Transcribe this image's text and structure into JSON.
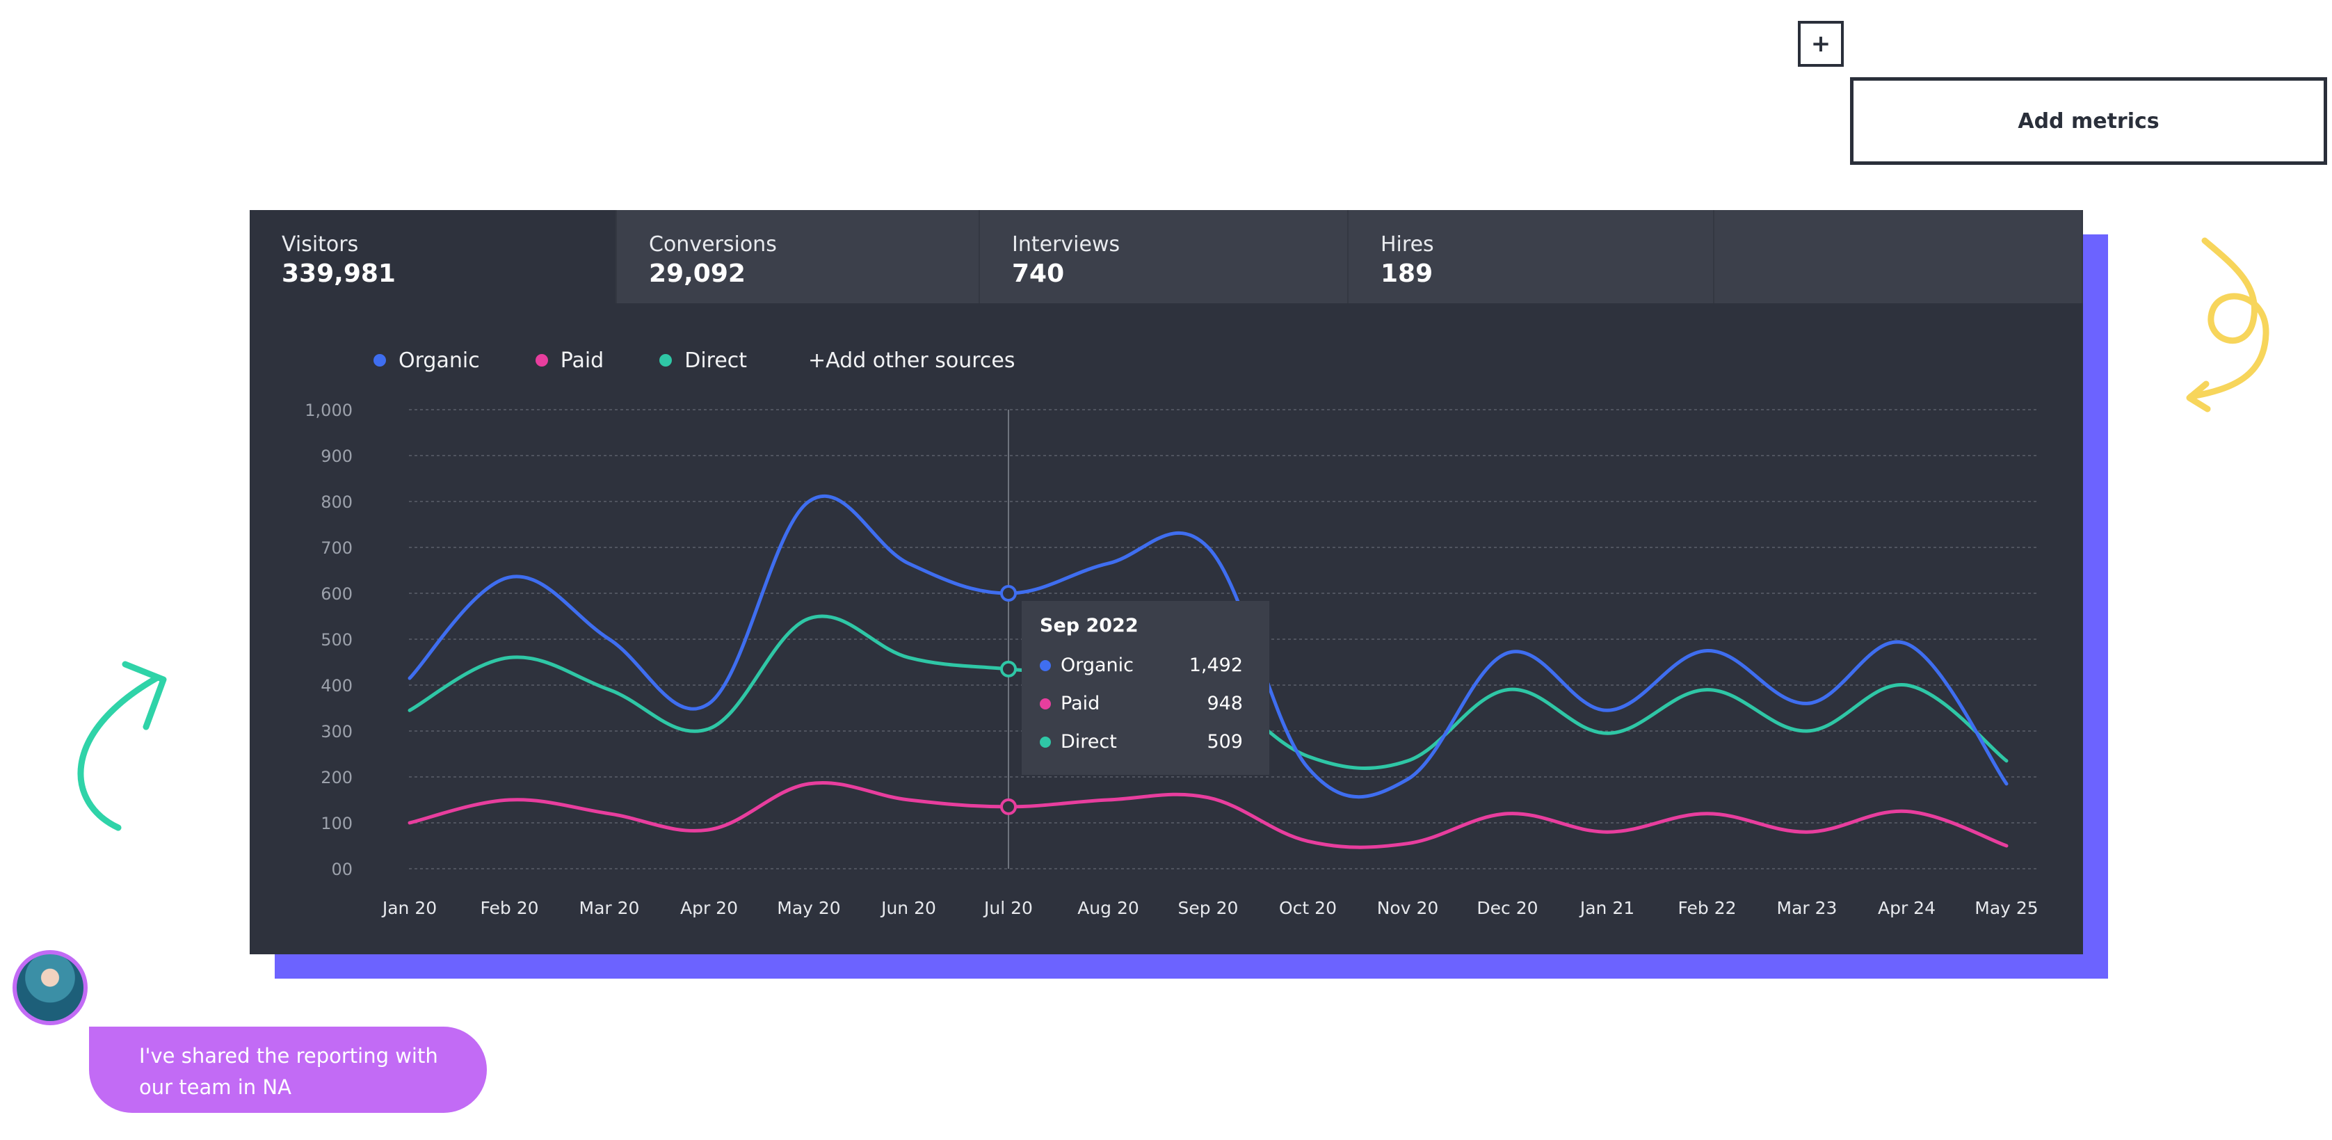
{
  "toolbar": {
    "plus_label": "+",
    "add_metrics_label": "Add metrics"
  },
  "tabs": [
    {
      "label": "Visitors",
      "value": "339,981"
    },
    {
      "label": "Conversions",
      "value": "29,092"
    },
    {
      "label": "Interviews",
      "value": "740"
    },
    {
      "label": "Hires",
      "value": "189"
    }
  ],
  "legend": {
    "items": [
      "Organic",
      "Paid",
      "Direct"
    ],
    "add_sources": "+Add other sources"
  },
  "tooltip": {
    "title": "Sep 2022",
    "rows": [
      {
        "name": "Organic",
        "value": "1,492"
      },
      {
        "name": "Paid",
        "value": "948"
      },
      {
        "name": "Direct",
        "value": "509"
      }
    ]
  },
  "chat": {
    "message": "I've shared the reporting with our team in NA"
  },
  "colors": {
    "organic": "#3f6ef0",
    "paid": "#e83e9e",
    "direct": "#2fc7a6",
    "panel": "#2e323d",
    "accent_shadow": "#6c63ff",
    "bubble": "#c26bf5"
  },
  "icons": [
    "plus-icon",
    "green-arrow-doodle",
    "yellow-swirl-doodle",
    "avatar-photo"
  ],
  "chart_data": {
    "type": "line",
    "title": "",
    "xlabel": "",
    "ylabel": "",
    "ylim": [
      0,
      1000
    ],
    "yticks": [
      "1,000",
      "900",
      "800",
      "700",
      "600",
      "500",
      "400",
      "300",
      "200",
      "100",
      "00"
    ],
    "grid": true,
    "legend_position": "top-left",
    "categories": [
      "Jan 20",
      "Feb 20",
      "Mar 20",
      "Apr 20",
      "May 20",
      "Jun 20",
      "Jul 20",
      "Aug 20",
      "Sep 20",
      "Oct 20",
      "Nov 20",
      "Dec 20",
      "Jan 21",
      "Feb 22",
      "Mar 23",
      "Apr 24",
      "May 25"
    ],
    "highlight_index": 6,
    "series": [
      {
        "name": "Organic",
        "values": [
          415,
          635,
          500,
          360,
          800,
          665,
          600,
          665,
          700,
          220,
          195,
          470,
          345,
          475,
          360,
          490,
          185
        ]
      },
      {
        "name": "Paid",
        "values": [
          100,
          150,
          120,
          85,
          185,
          150,
          135,
          150,
          155,
          60,
          55,
          120,
          80,
          120,
          80,
          125,
          50
        ]
      },
      {
        "name": "Direct",
        "values": [
          345,
          460,
          390,
          305,
          545,
          460,
          435,
          420,
          395,
          245,
          235,
          390,
          295,
          390,
          300,
          400,
          235
        ]
      }
    ]
  }
}
